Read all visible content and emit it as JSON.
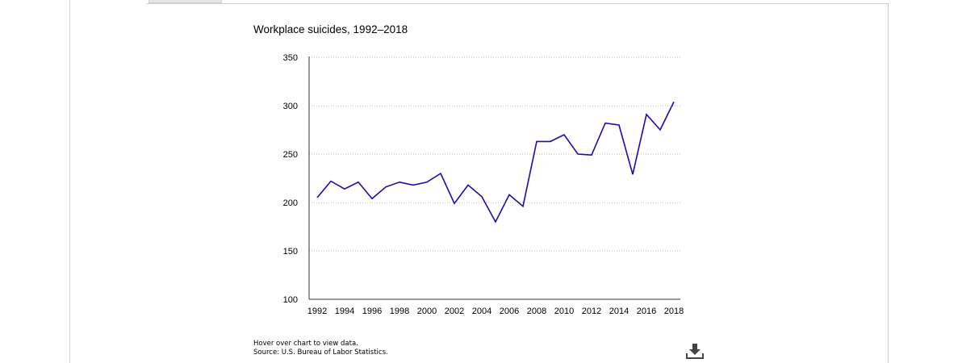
{
  "chart_data": {
    "type": "line",
    "title": "Workplace suicides, 1992–2018",
    "xlabel": "",
    "ylabel": "",
    "x": [
      1992,
      1993,
      1994,
      1995,
      1996,
      1997,
      1998,
      1999,
      2000,
      2001,
      2002,
      2003,
      2004,
      2005,
      2006,
      2007,
      2008,
      2009,
      2010,
      2011,
      2012,
      2013,
      2014,
      2015,
      2016,
      2017,
      2018
    ],
    "series": [
      {
        "values": [
          205,
          222,
          214,
          221,
          204,
          216,
          221,
          218,
          221,
          230,
          199,
          218,
          206,
          180,
          208,
          196,
          263,
          263,
          270,
          250,
          249,
          282,
          280,
          229,
          291,
          275,
          304
        ]
      }
    ],
    "xticks": [
      "1992",
      "1994",
      "1996",
      "1998",
      "2000",
      "2002",
      "2004",
      "2006",
      "2008",
      "2010",
      "2012",
      "2014",
      "2016",
      "2018"
    ],
    "yticks": [
      "100",
      "150",
      "200",
      "250",
      "300",
      "350"
    ],
    "xlim": [
      1992,
      2018
    ],
    "ylim": [
      100,
      350
    ],
    "grid": "horizontal-dotted",
    "line_color": "#1a0dab"
  },
  "notes": {
    "hover": "Hover over chart to view data.",
    "source": "Source: U.S. Bureau of Labor Statistics."
  },
  "icons": {
    "download": "download-icon"
  }
}
